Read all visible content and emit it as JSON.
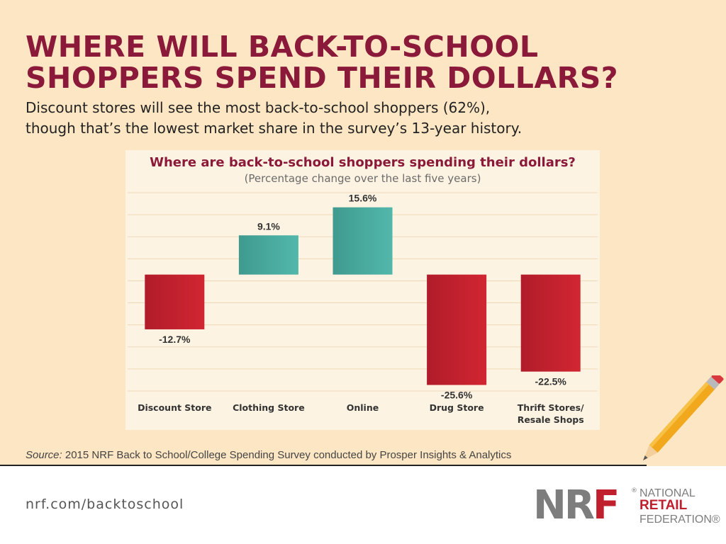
{
  "headline": {
    "line1": "WHERE WILL BACK-TO-SCHOOL",
    "line2": "SHOPPERS SPEND THEIR DOLLARS?"
  },
  "subheadline": {
    "line1": "Discount stores will see the most back-to-school shoppers (62%),",
    "line2": "though that’s the lowest market share in the survey’s 13-year history."
  },
  "chart_data": {
    "type": "bar",
    "title": "Where are back-to-school shoppers spending their dollars?",
    "subtitle": "(Percentage change over the last five years)",
    "categories": [
      [
        "Discount Store"
      ],
      [
        "Clothing Store"
      ],
      [
        "Online"
      ],
      [
        "Drug Store"
      ],
      [
        "Thrift Stores/",
        "Resale Shops"
      ]
    ],
    "values": [
      -12.7,
      9.1,
      15.6,
      -25.6,
      -22.5
    ],
    "value_labels": [
      "-12.7%",
      "9.1%",
      "15.6%",
      "-25.6%",
      "-22.5%"
    ],
    "ylim": [
      -27,
      19
    ],
    "gridlines": true,
    "xlabel": "",
    "ylabel": "",
    "colors": {
      "positive": "#4aaea2",
      "negative": "#c4202e"
    }
  },
  "source": {
    "label": "Source:",
    "text": " 2015 NRF Back to School/College Spending Survey conducted by Prosper Insights & Analytics"
  },
  "footer": {
    "url": "nrf.com/backtoschool",
    "logo": {
      "letters_nr": "NR",
      "letter_f": "F",
      "reg_mark": "®",
      "line1": "NATIONAL",
      "line2": "RETAIL",
      "line3": "FEDERATION®"
    }
  },
  "colors": {
    "background": "#fde6c3",
    "headline": "#8b1a3a",
    "accent_red": "#c0202e",
    "logo_gray": "#7d7d7d"
  }
}
